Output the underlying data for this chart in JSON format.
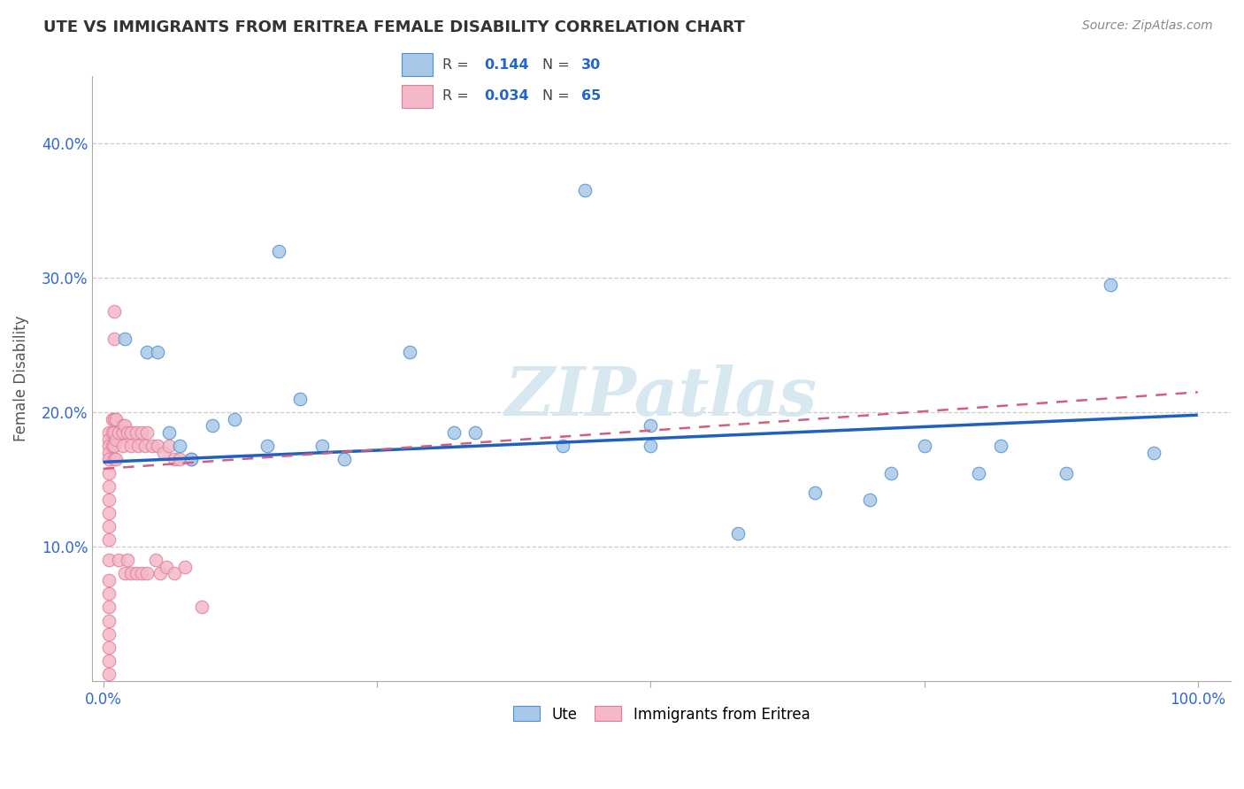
{
  "title": "UTE VS IMMIGRANTS FROM ERITREA FEMALE DISABILITY CORRELATION CHART",
  "source": "Source: ZipAtlas.com",
  "ylabel_label": "Female Disability",
  "xlim": [
    -0.01,
    1.03
  ],
  "ylim": [
    0.0,
    0.45
  ],
  "xticks": [
    0.0,
    0.25,
    0.5,
    0.75,
    1.0
  ],
  "xtick_labels": [
    "0.0%",
    "",
    "",
    "",
    "100.0%"
  ],
  "yticks": [
    0.1,
    0.2,
    0.3,
    0.4
  ],
  "ytick_labels": [
    "10.0%",
    "20.0%",
    "30.0%",
    "40.0%"
  ],
  "blue_R": "0.144",
  "blue_N": "30",
  "pink_R": "0.034",
  "pink_N": "65",
  "blue_color": "#a8c8e8",
  "pink_color": "#f4b8c8",
  "blue_edge_color": "#5090d0",
  "pink_edge_color": "#e08098",
  "blue_line_color": "#2060c0",
  "pink_line_color": "#d06080",
  "watermark": "ZIPatlas",
  "blue_x": [
    0.02,
    0.04,
    0.05,
    0.06,
    0.07,
    0.08,
    0.1,
    0.12,
    0.15,
    0.18,
    0.2,
    0.22,
    0.28,
    0.32,
    0.42,
    0.44,
    0.5,
    0.58,
    0.65,
    0.7,
    0.72,
    0.75,
    0.8,
    0.82,
    0.88,
    0.92,
    0.96,
    0.5,
    0.16,
    0.34
  ],
  "blue_y": [
    0.255,
    0.245,
    0.245,
    0.185,
    0.175,
    0.165,
    0.19,
    0.195,
    0.175,
    0.21,
    0.175,
    0.165,
    0.245,
    0.185,
    0.175,
    0.365,
    0.175,
    0.11,
    0.14,
    0.135,
    0.155,
    0.175,
    0.155,
    0.175,
    0.155,
    0.295,
    0.17,
    0.19,
    0.32,
    0.185
  ],
  "pink_x": [
    0.005,
    0.005,
    0.005,
    0.005,
    0.005,
    0.005,
    0.005,
    0.005,
    0.005,
    0.005,
    0.005,
    0.005,
    0.005,
    0.005,
    0.005,
    0.005,
    0.005,
    0.005,
    0.005,
    0.005,
    0.008,
    0.008,
    0.008,
    0.01,
    0.01,
    0.01,
    0.01,
    0.01,
    0.01,
    0.012,
    0.012,
    0.012,
    0.014,
    0.014,
    0.018,
    0.018,
    0.018,
    0.02,
    0.02,
    0.022,
    0.022,
    0.025,
    0.025,
    0.025,
    0.03,
    0.03,
    0.032,
    0.035,
    0.035,
    0.038,
    0.04,
    0.04,
    0.045,
    0.048,
    0.05,
    0.052,
    0.055,
    0.058,
    0.06,
    0.065,
    0.065,
    0.07,
    0.075,
    0.08,
    0.09
  ],
  "pink_y": [
    0.185,
    0.18,
    0.175,
    0.17,
    0.165,
    0.155,
    0.145,
    0.135,
    0.125,
    0.115,
    0.105,
    0.09,
    0.075,
    0.065,
    0.055,
    0.045,
    0.035,
    0.025,
    0.015,
    0.005,
    0.195,
    0.185,
    0.175,
    0.275,
    0.255,
    0.195,
    0.185,
    0.175,
    0.165,
    0.195,
    0.18,
    0.165,
    0.185,
    0.09,
    0.19,
    0.185,
    0.175,
    0.19,
    0.08,
    0.185,
    0.09,
    0.185,
    0.175,
    0.08,
    0.185,
    0.08,
    0.175,
    0.185,
    0.08,
    0.175,
    0.185,
    0.08,
    0.175,
    0.09,
    0.175,
    0.08,
    0.17,
    0.085,
    0.175,
    0.165,
    0.08,
    0.165,
    0.085,
    0.165,
    0.055
  ],
  "blue_line_x0": 0.0,
  "blue_line_x1": 1.0,
  "blue_line_y0": 0.163,
  "blue_line_y1": 0.198,
  "pink_line_x0": 0.0,
  "pink_line_x1": 1.0,
  "pink_line_y0": 0.158,
  "pink_line_y1": 0.215
}
